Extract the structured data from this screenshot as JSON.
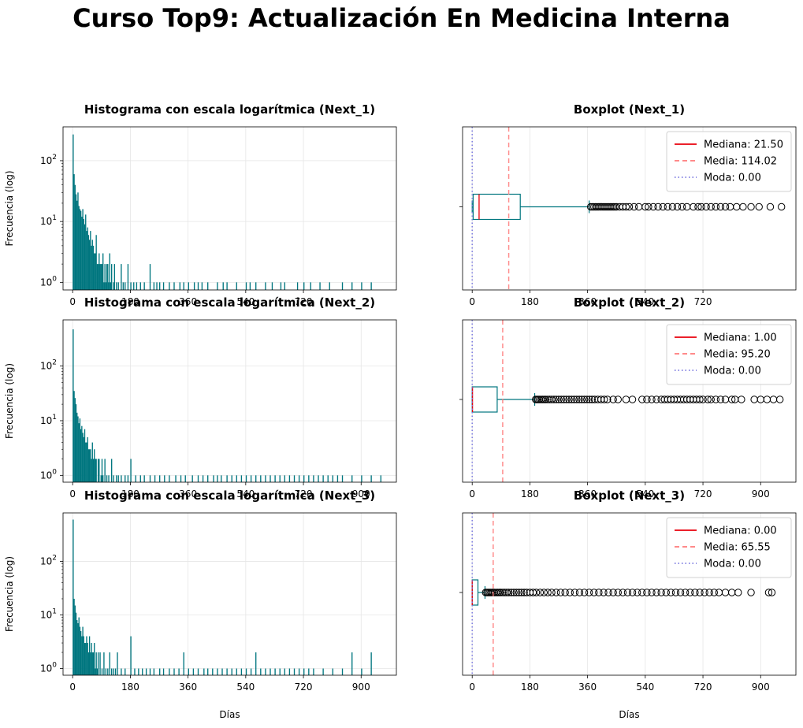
{
  "figure": {
    "suptitle": "Curso Top9: Actualización En Medicina Interna",
    "histogram_ylabel": "Frecuencia (log)",
    "shared_xlabel": "Días"
  },
  "chart_data": [
    {
      "type": "bar",
      "subtype": "histogram",
      "title": "Histograma con escala logarítmica (Next_1)",
      "xlabel": "",
      "ylabel": "Frecuencia (log)",
      "y_scale": "log",
      "xlim": [
        -30,
        1010
      ],
      "ylim": [
        0.75,
        360
      ],
      "x_ticks": [
        0,
        180,
        360,
        540,
        720
      ],
      "y_ticks": [
        "10^0",
        "10^1",
        "10^2"
      ],
      "grid": true,
      "color": "#00767f",
      "bin_width": 3.3,
      "bins": [
        [
          0,
          270
        ],
        [
          3,
          60
        ],
        [
          6,
          40
        ],
        [
          9,
          28
        ],
        [
          12,
          22
        ],
        [
          15,
          30
        ],
        [
          18,
          18
        ],
        [
          21,
          16
        ],
        [
          24,
          15
        ],
        [
          27,
          12
        ],
        [
          30,
          16
        ],
        [
          33,
          11
        ],
        [
          36,
          9
        ],
        [
          39,
          13
        ],
        [
          42,
          7
        ],
        [
          45,
          8
        ],
        [
          48,
          6
        ],
        [
          51,
          5
        ],
        [
          54,
          7
        ],
        [
          57,
          4
        ],
        [
          60,
          5
        ],
        [
          63,
          4
        ],
        [
          66,
          3
        ],
        [
          69,
          3
        ],
        [
          72,
          6
        ],
        [
          75,
          2
        ],
        [
          78,
          2
        ],
        [
          81,
          3
        ],
        [
          84,
          2
        ],
        [
          87,
          2
        ],
        [
          90,
          2
        ],
        [
          93,
          3
        ],
        [
          96,
          1
        ],
        [
          99,
          2
        ],
        [
          102,
          1
        ],
        [
          105,
          2
        ],
        [
          108,
          2
        ],
        [
          111,
          1
        ],
        [
          114,
          3
        ],
        [
          117,
          1
        ],
        [
          120,
          2
        ],
        [
          126,
          1
        ],
        [
          129,
          2
        ],
        [
          135,
          1
        ],
        [
          141,
          1
        ],
        [
          150,
          2
        ],
        [
          156,
          1
        ],
        [
          162,
          1
        ],
        [
          171,
          2
        ],
        [
          180,
          1
        ],
        [
          189,
          1
        ],
        [
          198,
          1
        ],
        [
          210,
          1
        ],
        [
          222,
          1
        ],
        [
          240,
          2
        ],
        [
          252,
          1
        ],
        [
          261,
          1
        ],
        [
          270,
          1
        ],
        [
          282,
          1
        ],
        [
          300,
          1
        ],
        [
          315,
          1
        ],
        [
          333,
          1
        ],
        [
          345,
          1
        ],
        [
          360,
          1
        ],
        [
          378,
          1
        ],
        [
          390,
          1
        ],
        [
          402,
          1
        ],
        [
          420,
          1
        ],
        [
          450,
          1
        ],
        [
          468,
          1
        ],
        [
          480,
          1
        ],
        [
          510,
          1
        ],
        [
          540,
          1
        ],
        [
          552,
          1
        ],
        [
          570,
          1
        ],
        [
          600,
          1
        ],
        [
          621,
          1
        ],
        [
          648,
          1
        ],
        [
          660,
          1
        ],
        [
          700,
          1
        ],
        [
          720,
          1
        ],
        [
          741,
          1
        ],
        [
          770,
          1
        ],
        [
          800,
          1
        ],
        [
          840,
          1
        ],
        [
          870,
          1
        ],
        [
          900,
          1
        ],
        [
          930,
          1
        ]
      ]
    },
    {
      "type": "boxplot",
      "title": "Boxplot (Next_1)",
      "xlabel": "",
      "xlim": [
        -30,
        1010
      ],
      "x_ticks": [
        0,
        180,
        360,
        540,
        720
      ],
      "grid": true,
      "box": {
        "min": 0,
        "q1": 3,
        "median": 21.5,
        "q3": 150,
        "whisker_high": 365
      },
      "mean": 114.02,
      "mode": 0.0,
      "outliers": [
        370,
        375,
        380,
        385,
        390,
        395,
        400,
        405,
        410,
        415,
        420,
        425,
        430,
        435,
        440,
        445,
        450,
        460,
        470,
        480,
        490,
        505,
        520,
        540,
        550,
        565,
        580,
        595,
        610,
        625,
        640,
        655,
        670,
        690,
        705,
        715,
        730,
        745,
        760,
        775,
        790,
        805,
        825,
        845,
        870,
        895,
        930,
        965
      ],
      "legend": {
        "position": "upper right",
        "entries": [
          "Mediana: 21.50",
          "Media: 114.02",
          "Moda: 0.00"
        ]
      }
    },
    {
      "type": "bar",
      "subtype": "histogram",
      "title": "Histograma con escala logarítmica (Next_2)",
      "xlabel": "",
      "ylabel": "Frecuencia (log)",
      "y_scale": "log",
      "xlim": [
        -30,
        1010
      ],
      "ylim": [
        0.75,
        700
      ],
      "x_ticks": [
        0,
        180,
        360,
        540,
        720,
        900
      ],
      "y_ticks": [
        "10^0",
        "10^1",
        "10^2"
      ],
      "grid": true,
      "color": "#00767f",
      "bin_width": 3.3,
      "bins": [
        [
          0,
          470
        ],
        [
          3,
          35
        ],
        [
          6,
          26
        ],
        [
          9,
          20
        ],
        [
          12,
          14
        ],
        [
          15,
          12
        ],
        [
          18,
          9
        ],
        [
          21,
          11
        ],
        [
          24,
          7
        ],
        [
          27,
          8
        ],
        [
          30,
          6
        ],
        [
          33,
          5
        ],
        [
          36,
          7
        ],
        [
          39,
          4
        ],
        [
          42,
          4
        ],
        [
          45,
          5
        ],
        [
          48,
          3
        ],
        [
          51,
          3
        ],
        [
          54,
          3
        ],
        [
          57,
          2
        ],
        [
          60,
          4
        ],
        [
          63,
          2
        ],
        [
          66,
          3
        ],
        [
          69,
          2
        ],
        [
          72,
          2
        ],
        [
          78,
          2
        ],
        [
          81,
          2
        ],
        [
          87,
          1
        ],
        [
          90,
          2
        ],
        [
          93,
          1
        ],
        [
          99,
          2
        ],
        [
          105,
          1
        ],
        [
          111,
          1
        ],
        [
          120,
          2
        ],
        [
          126,
          1
        ],
        [
          135,
          1
        ],
        [
          141,
          1
        ],
        [
          150,
          1
        ],
        [
          162,
          1
        ],
        [
          171,
          1
        ],
        [
          180,
          2
        ],
        [
          195,
          1
        ],
        [
          210,
          1
        ],
        [
          222,
          1
        ],
        [
          240,
          1
        ],
        [
          255,
          1
        ],
        [
          270,
          1
        ],
        [
          285,
          1
        ],
        [
          300,
          1
        ],
        [
          320,
          1
        ],
        [
          336,
          1
        ],
        [
          350,
          1
        ],
        [
          372,
          1
        ],
        [
          390,
          1
        ],
        [
          405,
          1
        ],
        [
          420,
          1
        ],
        [
          438,
          1
        ],
        [
          450,
          1
        ],
        [
          462,
          1
        ],
        [
          480,
          1
        ],
        [
          495,
          1
        ],
        [
          510,
          1
        ],
        [
          525,
          1
        ],
        [
          540,
          1
        ],
        [
          555,
          1
        ],
        [
          570,
          1
        ],
        [
          585,
          1
        ],
        [
          600,
          1
        ],
        [
          615,
          1
        ],
        [
          630,
          1
        ],
        [
          645,
          1
        ],
        [
          660,
          1
        ],
        [
          675,
          1
        ],
        [
          690,
          1
        ],
        [
          705,
          1
        ],
        [
          720,
          1
        ],
        [
          735,
          1
        ],
        [
          750,
          1
        ],
        [
          765,
          1
        ],
        [
          780,
          1
        ],
        [
          795,
          1
        ],
        [
          810,
          1
        ],
        [
          825,
          1
        ],
        [
          840,
          1
        ],
        [
          870,
          1
        ],
        [
          900,
          1
        ],
        [
          930,
          1
        ],
        [
          960,
          1
        ]
      ]
    },
    {
      "type": "boxplot",
      "title": "Boxplot (Next_2)",
      "xlabel": "",
      "xlim": [
        -30,
        1010
      ],
      "x_ticks": [
        0,
        180,
        360,
        540,
        720,
        900
      ],
      "grid": true,
      "box": {
        "min": 0,
        "q1": 0,
        "median": 1,
        "q3": 78,
        "whisker_high": 195
      },
      "mean": 95.2,
      "mode": 0.0,
      "outliers": [
        198,
        202,
        206,
        210,
        215,
        220,
        225,
        230,
        236,
        242,
        248,
        255,
        262,
        270,
        278,
        286,
        294,
        302,
        310,
        318,
        326,
        334,
        342,
        350,
        358,
        366,
        374,
        382,
        392,
        402,
        412,
        422,
        440,
        455,
        480,
        500,
        530,
        545,
        560,
        575,
        590,
        600,
        610,
        620,
        630,
        640,
        650,
        660,
        670,
        680,
        690,
        700,
        710,
        720,
        735,
        745,
        760,
        775,
        790,
        810,
        820,
        840,
        880,
        900,
        920,
        940,
        960
      ],
      "legend": {
        "position": "upper right",
        "entries": [
          "Mediana: 1.00",
          "Media: 95.20",
          "Moda: 0.00"
        ]
      }
    },
    {
      "type": "bar",
      "subtype": "histogram",
      "title": "Histograma con escala logarítmica (Next_3)",
      "xlabel": "Días",
      "ylabel": "Frecuencia (log)",
      "y_scale": "log",
      "xlim": [
        -30,
        1010
      ],
      "ylim": [
        0.75,
        800
      ],
      "x_ticks": [
        0,
        180,
        360,
        540,
        720,
        900
      ],
      "y_ticks": [
        "10^0",
        "10^1",
        "10^2"
      ],
      "grid": true,
      "color": "#00767f",
      "bin_width": 3.3,
      "bins": [
        [
          0,
          600
        ],
        [
          3,
          20
        ],
        [
          6,
          15
        ],
        [
          9,
          11
        ],
        [
          12,
          8
        ],
        [
          15,
          7
        ],
        [
          18,
          9
        ],
        [
          21,
          6
        ],
        [
          24,
          5
        ],
        [
          27,
          4
        ],
        [
          30,
          6
        ],
        [
          33,
          4
        ],
        [
          36,
          3
        ],
        [
          39,
          3
        ],
        [
          42,
          4
        ],
        [
          45,
          3
        ],
        [
          48,
          2
        ],
        [
          51,
          4
        ],
        [
          54,
          2
        ],
        [
          57,
          3
        ],
        [
          60,
          2
        ],
        [
          63,
          2
        ],
        [
          66,
          3
        ],
        [
          69,
          1
        ],
        [
          72,
          2
        ],
        [
          75,
          1
        ],
        [
          78,
          2
        ],
        [
          84,
          2
        ],
        [
          90,
          1
        ],
        [
          96,
          2
        ],
        [
          102,
          1
        ],
        [
          108,
          1
        ],
        [
          114,
          2
        ],
        [
          120,
          1
        ],
        [
          126,
          1
        ],
        [
          132,
          1
        ],
        [
          138,
          2
        ],
        [
          150,
          1
        ],
        [
          162,
          1
        ],
        [
          180,
          4
        ],
        [
          192,
          1
        ],
        [
          204,
          1
        ],
        [
          216,
          1
        ],
        [
          228,
          1
        ],
        [
          240,
          1
        ],
        [
          252,
          1
        ],
        [
          270,
          1
        ],
        [
          282,
          1
        ],
        [
          300,
          1
        ],
        [
          315,
          1
        ],
        [
          330,
          1
        ],
        [
          345,
          2
        ],
        [
          360,
          1
        ],
        [
          375,
          1
        ],
        [
          390,
          1
        ],
        [
          408,
          1
        ],
        [
          420,
          1
        ],
        [
          435,
          1
        ],
        [
          450,
          1
        ],
        [
          465,
          1
        ],
        [
          480,
          1
        ],
        [
          495,
          1
        ],
        [
          510,
          1
        ],
        [
          525,
          1
        ],
        [
          540,
          1
        ],
        [
          555,
          1
        ],
        [
          570,
          2
        ],
        [
          585,
          1
        ],
        [
          600,
          1
        ],
        [
          615,
          1
        ],
        [
          630,
          1
        ],
        [
          645,
          1
        ],
        [
          660,
          1
        ],
        [
          675,
          1
        ],
        [
          690,
          1
        ],
        [
          705,
          1
        ],
        [
          720,
          1
        ],
        [
          735,
          1
        ],
        [
          750,
          1
        ],
        [
          780,
          1
        ],
        [
          810,
          1
        ],
        [
          840,
          1
        ],
        [
          870,
          2
        ],
        [
          900,
          1
        ],
        [
          930,
          2
        ]
      ]
    },
    {
      "type": "boxplot",
      "title": "Boxplot (Next_3)",
      "xlabel": "Días",
      "xlim": [
        -30,
        1010
      ],
      "x_ticks": [
        0,
        180,
        360,
        540,
        720,
        900
      ],
      "grid": true,
      "box": {
        "min": 0,
        "q1": 0,
        "median": 0,
        "q3": 18,
        "whisker_high": 40
      },
      "mean": 65.55,
      "mode": 0.0,
      "outliers": [
        42,
        46,
        50,
        54,
        58,
        62,
        66,
        70,
        75,
        80,
        85,
        90,
        96,
        102,
        108,
        114,
        122,
        130,
        138,
        146,
        154,
        162,
        170,
        180,
        190,
        200,
        212,
        224,
        236,
        248,
        262,
        276,
        290,
        305,
        320,
        335,
        350,
        365,
        380,
        395,
        410,
        425,
        440,
        455,
        470,
        485,
        500,
        515,
        530,
        545,
        560,
        575,
        590,
        605,
        620,
        635,
        650,
        665,
        680,
        695,
        710,
        725,
        740,
        755,
        770,
        790,
        810,
        830,
        870,
        925,
        935
      ],
      "legend": {
        "position": "upper right",
        "entries": [
          "Mediana: 0.00",
          "Media: 65.55",
          "Moda: 0.00"
        ]
      }
    }
  ]
}
